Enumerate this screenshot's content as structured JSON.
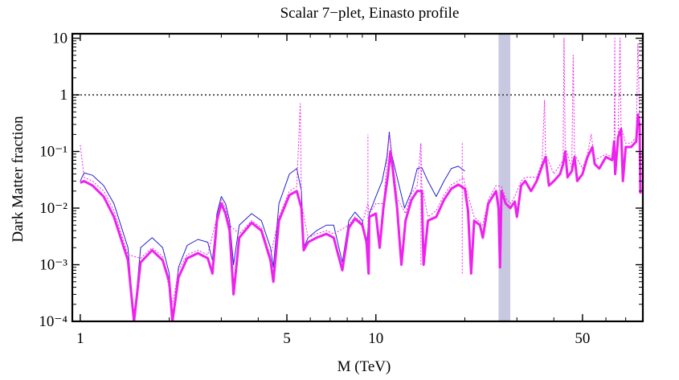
{
  "chart_data": {
    "type": "line",
    "title": "Scalar 7−plet, Einasto profile",
    "xlabel": "M (TeV)",
    "ylabel": "Dark Matter fraction",
    "xscale": "log",
    "yscale": "log",
    "xlim": [
      0.94,
      80
    ],
    "ylim": [
      0.0001,
      12
    ],
    "x_ticks": [
      {
        "value": 1,
        "label": "1"
      },
      {
        "value": 5,
        "label": "5"
      },
      {
        "value": 10,
        "label": "10"
      },
      {
        "value": 50,
        "label": "50"
      }
    ],
    "y_ticks": [
      {
        "value": 10,
        "label": "10"
      },
      {
        "value": 1,
        "label": "1"
      },
      {
        "value": 0.1,
        "label": "10⁻¹"
      },
      {
        "value": 0.01,
        "label": "10⁻²"
      },
      {
        "value": 0.001,
        "label": "10⁻³"
      },
      {
        "value": 0.0001,
        "label": "10⁻⁴"
      }
    ],
    "reference_line": {
      "y": 1,
      "style": "dotted",
      "color": "#555555"
    },
    "shaded_band": {
      "x_range": [
        26,
        28.5
      ],
      "color": "#c8c8e0"
    },
    "series": [
      {
        "name": "blue thin",
        "color": "#2222cc",
        "style": "solid",
        "points": [
          [
            1.0,
            0.03
          ],
          [
            1.03,
            0.042
          ],
          [
            1.1,
            0.038
          ],
          [
            1.2,
            0.025
          ],
          [
            1.3,
            0.012
          ],
          [
            1.45,
            0.002
          ],
          [
            1.52,
            0.0001
          ],
          [
            1.6,
            0.002
          ],
          [
            1.75,
            0.003
          ],
          [
            1.9,
            0.002
          ],
          [
            2.0,
            0.0007
          ],
          [
            2.05,
            0.0001
          ],
          [
            2.15,
            0.0009
          ],
          [
            2.3,
            0.0022
          ],
          [
            2.5,
            0.0028
          ],
          [
            2.7,
            0.0025
          ],
          [
            2.8,
            0.0012
          ],
          [
            2.9,
            0.008
          ],
          [
            3.0,
            0.016
          ],
          [
            3.1,
            0.012
          ],
          [
            3.2,
            0.006
          ],
          [
            3.3,
            0.001
          ],
          [
            3.45,
            0.005
          ],
          [
            3.8,
            0.008
          ],
          [
            4.1,
            0.006
          ],
          [
            4.4,
            0.002
          ],
          [
            4.5,
            0.0009
          ],
          [
            4.7,
            0.012
          ],
          [
            5.1,
            0.04
          ],
          [
            5.4,
            0.05
          ],
          [
            5.6,
            0.02
          ],
          [
            5.7,
            0.002
          ],
          [
            5.9,
            0.003
          ],
          [
            6.3,
            0.004
          ],
          [
            6.8,
            0.005
          ],
          [
            7.2,
            0.005
          ],
          [
            7.7,
            0.0011
          ],
          [
            8.1,
            0.006
          ],
          [
            8.5,
            0.0085
          ],
          [
            9.0,
            0.006
          ],
          [
            9.3,
            0.002
          ],
          [
            9.5,
            0.008
          ],
          [
            10.0,
            0.016
          ],
          [
            10.5,
            0.03
          ],
          [
            10.9,
            0.08
          ],
          [
            11.1,
            0.22
          ],
          [
            11.3,
            0.09
          ],
          [
            11.8,
            0.035
          ],
          [
            12.5,
            0.01
          ],
          [
            13.2,
            0.02
          ],
          [
            13.8,
            0.05
          ],
          [
            14.3,
            0.052
          ],
          [
            15.0,
            0.03
          ],
          [
            16.0,
            0.016
          ],
          [
            17.0,
            0.03
          ],
          [
            18.0,
            0.05
          ],
          [
            19.0,
            0.055
          ],
          [
            20.0,
            0.045
          ]
        ]
      },
      {
        "name": "magenta thick",
        "color": "#ee22ee",
        "style": "solid",
        "points": [
          [
            1.0,
            0.028
          ],
          [
            1.03,
            0.03
          ],
          [
            1.1,
            0.025
          ],
          [
            1.2,
            0.016
          ],
          [
            1.3,
            0.007
          ],
          [
            1.45,
            0.0012
          ],
          [
            1.52,
            0.0001
          ],
          [
            1.6,
            0.0011
          ],
          [
            1.75,
            0.0018
          ],
          [
            1.9,
            0.0012
          ],
          [
            2.0,
            0.0005
          ],
          [
            2.05,
            0.0001
          ],
          [
            2.15,
            0.0006
          ],
          [
            2.3,
            0.0013
          ],
          [
            2.5,
            0.0016
          ],
          [
            2.7,
            0.0013
          ],
          [
            2.8,
            0.0007
          ],
          [
            2.9,
            0.006
          ],
          [
            3.0,
            0.012
          ],
          [
            3.1,
            0.008
          ],
          [
            3.2,
            0.004
          ],
          [
            3.3,
            0.0003
          ],
          [
            3.45,
            0.003
          ],
          [
            3.8,
            0.0055
          ],
          [
            4.1,
            0.004
          ],
          [
            4.4,
            0.0012
          ],
          [
            4.5,
            0.0005
          ],
          [
            4.7,
            0.006
          ],
          [
            5.1,
            0.017
          ],
          [
            5.4,
            0.02
          ],
          [
            5.6,
            0.01
          ],
          [
            5.7,
            0.0018
          ],
          [
            5.9,
            0.0025
          ],
          [
            6.3,
            0.003
          ],
          [
            6.8,
            0.0035
          ],
          [
            7.2,
            0.003
          ],
          [
            7.7,
            0.0008
          ],
          [
            8.1,
            0.0045
          ],
          [
            8.5,
            0.0065
          ],
          [
            9.0,
            0.005
          ],
          [
            9.3,
            0.0025
          ],
          [
            9.45,
            0.0007
          ],
          [
            9.5,
            0.007
          ],
          [
            10.0,
            0.008
          ],
          [
            10.3,
            0.002
          ],
          [
            10.6,
            0.01
          ],
          [
            11.0,
            0.04
          ],
          [
            11.2,
            0.1
          ],
          [
            11.4,
            0.05
          ],
          [
            11.8,
            0.01
          ],
          [
            12.2,
            0.001
          ],
          [
            12.6,
            0.006
          ],
          [
            13.2,
            0.014
          ],
          [
            13.8,
            0.02
          ],
          [
            14.3,
            0.02
          ],
          [
            14.5,
            0.001
          ],
          [
            15.0,
            0.006
          ],
          [
            16.0,
            0.007
          ],
          [
            17.0,
            0.014
          ],
          [
            18.0,
            0.022
          ],
          [
            19.0,
            0.026
          ],
          [
            20.0,
            0.022
          ],
          [
            20.5,
            0.009
          ],
          [
            21.0,
            0.0007
          ],
          [
            21.5,
            0.006
          ],
          [
            22.5,
            0.005
          ],
          [
            23.0,
            0.003
          ],
          [
            24.0,
            0.012
          ],
          [
            25.5,
            0.02
          ],
          [
            26.0,
            0.01
          ],
          [
            26.3,
            0.0009
          ],
          [
            26.6,
            0.02
          ],
          [
            27.5,
            0.012
          ],
          [
            28.5,
            0.01
          ],
          [
            29.5,
            0.013
          ],
          [
            30.0,
            0.007
          ],
          [
            31.0,
            0.025
          ],
          [
            32.0,
            0.03
          ],
          [
            33.5,
            0.02
          ],
          [
            35.0,
            0.03
          ],
          [
            36.5,
            0.055
          ],
          [
            37.5,
            0.08
          ],
          [
            38.5,
            0.025
          ],
          [
            40.0,
            0.03
          ],
          [
            42.0,
            0.04
          ],
          [
            43.0,
            0.06
          ],
          [
            43.7,
            0.1
          ],
          [
            44.5,
            0.035
          ],
          [
            46.0,
            0.045
          ],
          [
            47.0,
            0.08
          ],
          [
            48.0,
            0.03
          ],
          [
            50.0,
            0.04
          ],
          [
            52.0,
            0.08
          ],
          [
            54.0,
            0.12
          ],
          [
            55.0,
            0.06
          ],
          [
            57.0,
            0.05
          ],
          [
            60.0,
            0.08
          ],
          [
            63.0,
            0.07
          ],
          [
            64.0,
            0.15
          ],
          [
            64.5,
            0.04
          ],
          [
            66.0,
            0.18
          ],
          [
            67.5,
            0.25
          ],
          [
            68.5,
            0.03
          ],
          [
            70.0,
            0.12
          ],
          [
            73.0,
            0.12
          ],
          [
            76.0,
            0.15
          ],
          [
            77.0,
            0.45
          ],
          [
            78.0,
            0.3
          ],
          [
            78.5,
            0.018
          ]
        ]
      },
      {
        "name": "magenta dotted",
        "color": "#ee22ee",
        "style": "dotted",
        "points": [
          [
            1.0,
            0.13
          ],
          [
            1.03,
            0.035
          ],
          [
            1.1,
            0.03
          ],
          [
            1.2,
            0.02
          ],
          [
            1.3,
            0.009
          ],
          [
            1.45,
            0.0015
          ],
          [
            1.6,
            0.0013
          ],
          [
            1.75,
            0.002
          ],
          [
            1.9,
            0.0014
          ],
          [
            2.05,
            0.0002
          ],
          [
            2.15,
            0.0008
          ],
          [
            2.3,
            0.0015
          ],
          [
            2.5,
            0.0018
          ],
          [
            2.7,
            0.0015
          ],
          [
            2.9,
            0.007
          ],
          [
            3.0,
            0.014
          ],
          [
            3.1,
            0.01
          ],
          [
            3.2,
            0.005
          ],
          [
            3.45,
            0.0035
          ],
          [
            3.8,
            0.006
          ],
          [
            4.1,
            0.0045
          ],
          [
            4.4,
            0.0014
          ],
          [
            4.7,
            0.007
          ],
          [
            5.1,
            0.02
          ],
          [
            5.4,
            0.024
          ],
          [
            5.55,
            0.7
          ],
          [
            5.6,
            0.012
          ],
          [
            5.9,
            0.003
          ],
          [
            6.3,
            0.0035
          ],
          [
            6.8,
            0.004
          ],
          [
            7.2,
            0.0035
          ],
          [
            8.1,
            0.005
          ],
          [
            8.5,
            0.007
          ],
          [
            9.0,
            0.0055
          ],
          [
            9.4,
            0.012
          ],
          [
            9.5,
            0.008
          ],
          [
            10.0,
            0.012
          ],
          [
            10.6,
            0.012
          ],
          [
            10.8,
            0.035
          ],
          [
            11.1,
            0.2
          ],
          [
            11.4,
            0.07
          ],
          [
            11.8,
            0.015
          ],
          [
            12.6,
            0.008
          ],
          [
            13.2,
            0.018
          ],
          [
            13.8,
            0.025
          ],
          [
            14.2,
            0.14
          ],
          [
            14.3,
            0.025
          ],
          [
            15.0,
            0.007
          ],
          [
            16.0,
            0.009
          ],
          [
            17.0,
            0.017
          ],
          [
            18.0,
            0.026
          ],
          [
            19.0,
            0.03
          ],
          [
            19.8,
            0.035
          ],
          [
            20.0,
            0.026
          ],
          [
            21.5,
            0.007
          ],
          [
            23.0,
            0.005
          ],
          [
            24.0,
            0.014
          ],
          [
            25.5,
            0.025
          ],
          [
            26.6,
            0.024
          ],
          [
            27.5,
            0.015
          ],
          [
            28.5,
            0.012
          ],
          [
            29.5,
            0.016
          ],
          [
            31.0,
            0.03
          ],
          [
            32.0,
            0.035
          ],
          [
            35.0,
            0.035
          ],
          [
            36.5,
            0.065
          ],
          [
            37.2,
            0.8
          ],
          [
            37.5,
            0.09
          ],
          [
            40.0,
            0.04
          ],
          [
            43.0,
            0.07
          ],
          [
            43.3,
            10.0
          ],
          [
            43.7,
            0.12
          ],
          [
            46.0,
            0.05
          ],
          [
            46.5,
            5.0
          ],
          [
            47.0,
            0.09
          ],
          [
            50.0,
            0.05
          ],
          [
            52.0,
            0.09
          ],
          [
            53.5,
            0.2
          ],
          [
            55.0,
            0.07
          ],
          [
            60.0,
            0.09
          ],
          [
            63.0,
            0.08
          ],
          [
            64.0,
            0.18
          ],
          [
            64.3,
            10.0
          ],
          [
            64.5,
            0.05
          ],
          [
            66.0,
            0.2
          ],
          [
            67.0,
            10.0
          ],
          [
            67.5,
            0.28
          ],
          [
            70.0,
            0.14
          ],
          [
            73.0,
            0.14
          ],
          [
            76.0,
            0.18
          ],
          [
            77.0,
            8.0
          ],
          [
            78.0,
            0.35
          ]
        ]
      },
      {
        "name": "magenta dotted spikes",
        "color": "#ee22ee",
        "style": "dotted",
        "spikes": [
          {
            "x": 9.4,
            "y_from": 0.0007,
            "y_to": 0.2
          },
          {
            "x": 14.2,
            "y_from": 0.001,
            "y_to": 0.14
          },
          {
            "x": 19.6,
            "y_from": 0.0007,
            "y_to": 0.15
          }
        ]
      }
    ]
  }
}
